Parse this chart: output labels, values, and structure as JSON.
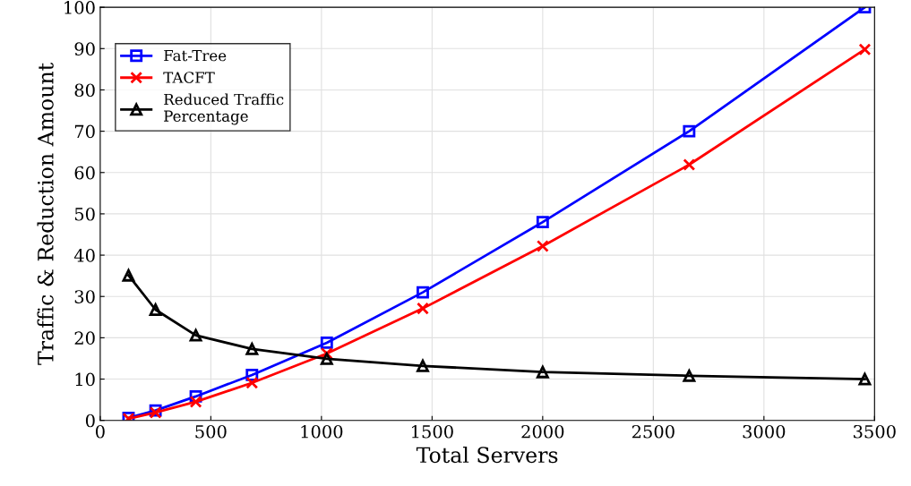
{
  "chart_data": {
    "type": "line",
    "xlabel": "Total Servers",
    "ylabel": "Traffic & Reduction Amount",
    "x": [
      128,
      250,
      432,
      686,
      1024,
      1458,
      2000,
      2662,
      3456
    ],
    "series": [
      {
        "name": "Fat-Tree",
        "color": "#0000ff",
        "marker": "square",
        "values": [
          0.6,
          2.4,
          5.8,
          11,
          18.8,
          31,
          48,
          70,
          100
        ]
      },
      {
        "name": "TACFT",
        "color": "#ff0000",
        "marker": "cross",
        "values": [
          0.4,
          1.9,
          4.5,
          9.1,
          16.2,
          27.1,
          42.2,
          61.9,
          89.8
        ]
      },
      {
        "name": "Reduced Traffic\nPercentage",
        "color": "#000000",
        "marker": "triangle",
        "values": [
          35.1,
          26.8,
          20.6,
          17.3,
          14.9,
          13.2,
          11.7,
          10.8,
          10.0
        ]
      }
    ],
    "xlim": [
      0,
      3500
    ],
    "xticks": [
      0,
      500,
      1000,
      1500,
      2000,
      2500,
      3000,
      3500
    ],
    "ylim": [
      0,
      100
    ],
    "yticks": [
      0,
      10,
      20,
      30,
      40,
      50,
      60,
      70,
      80,
      90,
      100
    ],
    "grid": true,
    "legend": "top left",
    "line_style": "solid"
  }
}
